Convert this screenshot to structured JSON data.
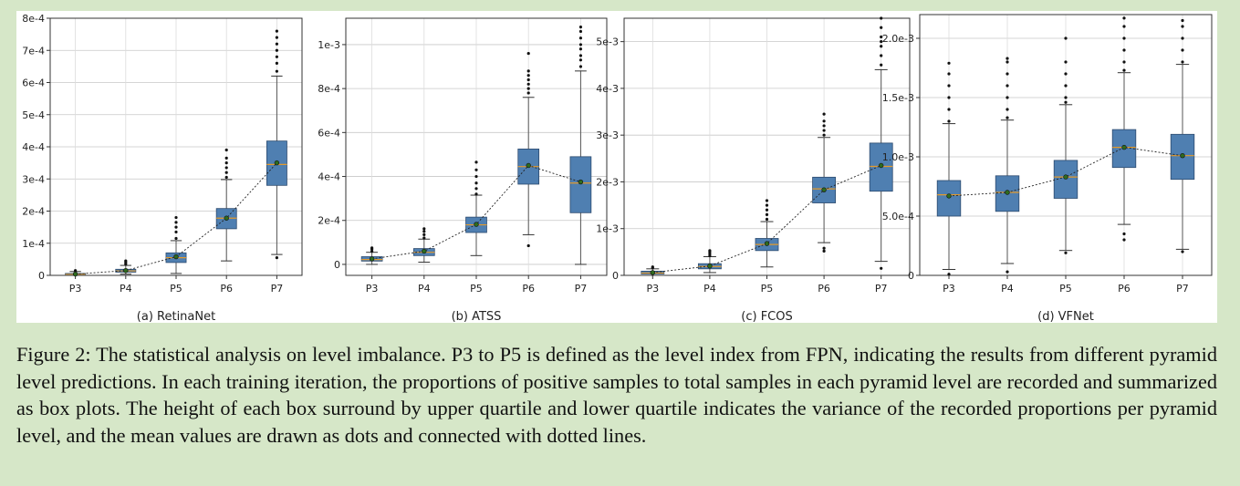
{
  "caption": {
    "text": "Figure 2: The statistical analysis on level imbalance. P3 to P5 is defined as the level index from FPN, indicating the results from different pyramid level predictions. In each training iteration, the proportions of positive samples to total samples in each pyramid level are recorded and summarized as box plots. The height of each box surround by upper quartile and lower quartile indicates the variance of the recorded proportions per pyramid level, and the mean values are drawn as dots and connected with dotted lines."
  },
  "colors": {
    "box_fill": "#4f7fb1",
    "median": "#e39a2c",
    "mean_dot": "#2e6b1f",
    "outer_background": "#d6e7c8"
  },
  "chart_data": [
    {
      "type": "box",
      "subtitle": "(a) RetinaNet",
      "categories": [
        "P3",
        "P4",
        "P5",
        "P6",
        "P7"
      ],
      "ylim": [
        0,
        0.0008
      ],
      "yticks": [
        0,
        0.0001,
        0.0002,
        0.0003,
        0.0004,
        0.0005,
        0.0006,
        0.0007,
        0.0008
      ],
      "ytick_labels": [
        "0",
        "1e-4",
        "2e-4",
        "3e-4",
        "4e-4",
        "5e-4",
        "6e-4",
        "7e-4",
        "8e-4"
      ],
      "grid": true,
      "boxes": [
        {
          "whisker_low": 0.0,
          "q1": 1e-06,
          "median": 3e-06,
          "q3": 6e-06,
          "whisker_high": 1.2e-05,
          "mean": 4e-06,
          "outliers_high": [
            1.5e-05
          ]
        },
        {
          "whisker_low": 4e-06,
          "q1": 1e-05,
          "median": 1.4e-05,
          "q3": 1.9e-05,
          "whisker_high": 3.1e-05,
          "mean": 1.5e-05,
          "outliers_high": [
            3.5e-05,
            4e-05,
            4.5e-05
          ]
        },
        {
          "whisker_low": 6e-06,
          "q1": 4e-05,
          "median": 5.5e-05,
          "q3": 7e-05,
          "whisker_high": 0.000108,
          "mean": 5.8e-05,
          "outliers_high": [
            0.000115,
            0.000135,
            0.00015,
            0.000165,
            0.00018
          ]
        },
        {
          "whisker_low": 4.5e-05,
          "q1": 0.000145,
          "median": 0.000178,
          "q3": 0.000208,
          "whisker_high": 0.000298,
          "mean": 0.000178,
          "outliers_high": [
            0.000305,
            0.00032,
            0.000335,
            0.00035,
            0.000365,
            0.00039
          ]
        },
        {
          "whisker_low": 6.5e-05,
          "q1": 0.00028,
          "median": 0.000345,
          "q3": 0.000418,
          "whisker_high": 0.00062,
          "mean": 0.00035,
          "outliers_low": [
            5.5e-05
          ],
          "outliers_high": [
            0.000635,
            0.00066,
            0.00068,
            0.0007,
            0.00072,
            0.00074,
            0.00076
          ]
        }
      ]
    },
    {
      "type": "box",
      "subtitle": "(b) ATSS",
      "categories": [
        "P3",
        "P4",
        "P5",
        "P6",
        "P7"
      ],
      "ylim": [
        -5e-05,
        0.00112
      ],
      "yticks": [
        0,
        0.0002,
        0.0004,
        0.0006,
        0.0008,
        0.001
      ],
      "ytick_labels": [
        "0",
        "2e-4",
        "4e-4",
        "6e-4",
        "8e-4",
        "1e-3"
      ],
      "grid": true,
      "boxes": [
        {
          "whisker_low": 0.0,
          "q1": 1.5e-05,
          "median": 2.2e-05,
          "q3": 3.5e-05,
          "whisker_high": 5.5e-05,
          "mean": 2.5e-05,
          "outliers_high": [
            6e-05,
            7e-05,
            7.5e-05
          ]
        },
        {
          "whisker_low": 1e-05,
          "q1": 4e-05,
          "median": 5.5e-05,
          "q3": 7.2e-05,
          "whisker_high": 0.000115,
          "mean": 6e-05,
          "outliers_high": [
            0.00012,
            0.000135,
            0.00015,
            0.000162
          ]
        },
        {
          "whisker_low": 4e-05,
          "q1": 0.000145,
          "median": 0.00018,
          "q3": 0.000215,
          "whisker_high": 0.000315,
          "mean": 0.000182,
          "outliers_high": [
            0.00032,
            0.000345,
            0.00037,
            0.0004,
            0.00043,
            0.000465
          ]
        },
        {
          "whisker_low": 0.000135,
          "q1": 0.000365,
          "median": 0.000445,
          "q3": 0.000525,
          "whisker_high": 0.00076,
          "mean": 0.00045,
          "outliers_low": [
            8.5e-05
          ],
          "outliers_high": [
            0.00078,
            0.0008,
            0.00082,
            0.00084,
            0.00086,
            0.00088,
            0.00096
          ]
        },
        {
          "whisker_low": 0.0,
          "q1": 0.000235,
          "median": 0.00037,
          "q3": 0.00049,
          "whisker_high": 0.00088,
          "mean": 0.000375,
          "outliers_high": [
            0.0009,
            0.00093,
            0.00095,
            0.00098,
            0.001,
            0.00103,
            0.00106,
            0.00108
          ]
        }
      ]
    },
    {
      "type": "box",
      "subtitle": "(c) FCOS",
      "categories": [
        "P3",
        "P4",
        "P5",
        "P6",
        "P7"
      ],
      "ylim": [
        0,
        0.0055
      ],
      "yticks": [
        0,
        0.001,
        0.002,
        0.003,
        0.004,
        0.005
      ],
      "ytick_labels": [
        "0",
        "1e-3",
        "2e-3",
        "3e-3",
        "4e-3",
        "5e-3"
      ],
      "grid": true,
      "boxes": [
        {
          "whisker_low": 0.0,
          "q1": 3e-05,
          "median": 5e-05,
          "q3": 9e-05,
          "whisker_high": 0.00014,
          "mean": 6e-05,
          "outliers_high": [
            0.00016,
            0.00018
          ]
        },
        {
          "whisker_low": 6e-05,
          "q1": 0.00014,
          "median": 0.00019,
          "q3": 0.00025,
          "whisker_high": 0.0004,
          "mean": 0.0002,
          "outliers_high": [
            0.00042,
            0.00046,
            0.0005,
            0.00053
          ]
        },
        {
          "whisker_low": 0.00018,
          "q1": 0.00053,
          "median": 0.00066,
          "q3": 0.00079,
          "whisker_high": 0.00115,
          "mean": 0.00068,
          "outliers_high": [
            0.0012,
            0.0013,
            0.0014,
            0.0015,
            0.0016
          ]
        },
        {
          "whisker_low": 0.0007,
          "q1": 0.00155,
          "median": 0.00185,
          "q3": 0.0021,
          "whisker_high": 0.00295,
          "mean": 0.00183,
          "outliers_low": [
            0.00052,
            0.00058
          ],
          "outliers_high": [
            0.003,
            0.0031,
            0.0032,
            0.0033,
            0.00345
          ]
        },
        {
          "whisker_low": 0.0003,
          "q1": 0.0018,
          "median": 0.00233,
          "q3": 0.00283,
          "whisker_high": 0.0044,
          "mean": 0.00235,
          "outliers_low": [
            0.00015
          ],
          "outliers_high": [
            0.0045,
            0.0047,
            0.0049,
            0.005,
            0.0051,
            0.0053,
            0.0055
          ]
        }
      ]
    },
    {
      "type": "box",
      "subtitle": "(d) VFNet",
      "categories": [
        "P3",
        "P4",
        "P5",
        "P6",
        "P7"
      ],
      "ylim": [
        0,
        0.0022
      ],
      "yticks": [
        0,
        0.0005,
        0.001,
        0.0015,
        0.002
      ],
      "ytick_labels": [
        "0",
        "5.0e-4",
        "1.0e-3",
        "1.5e-3",
        "2.0e-3"
      ],
      "grid": true,
      "boxes": [
        {
          "whisker_low": 5e-05,
          "q1": 0.0005,
          "median": 0.00068,
          "q3": 0.0008,
          "whisker_high": 0.00128,
          "mean": 0.00067,
          "outliers_low": [
            1e-05
          ],
          "outliers_high": [
            0.0013,
            0.0014,
            0.0015,
            0.0016,
            0.0017,
            0.00179
          ]
        },
        {
          "whisker_low": 0.0001,
          "q1": 0.00054,
          "median": 0.0007,
          "q3": 0.00084,
          "whisker_high": 0.00131,
          "mean": 0.0007,
          "outliers_low": [
            3e-05
          ],
          "outliers_high": [
            0.00133,
            0.0014,
            0.0015,
            0.0016,
            0.0017,
            0.0018,
            0.00183
          ]
        },
        {
          "whisker_low": 0.00021,
          "q1": 0.00065,
          "median": 0.00083,
          "q3": 0.00097,
          "whisker_high": 0.00144,
          "mean": 0.00083,
          "outliers_low": [
            0.00019
          ],
          "outliers_high": [
            0.00146,
            0.0015,
            0.0016,
            0.0017,
            0.0018,
            0.002
          ]
        },
        {
          "whisker_low": 0.00043,
          "q1": 0.00091,
          "median": 0.00108,
          "q3": 0.00123,
          "whisker_high": 0.00171,
          "mean": 0.00108,
          "outliers_low": [
            0.00035,
            0.0003
          ],
          "outliers_high": [
            0.00173,
            0.0018,
            0.0019,
            0.002,
            0.0021,
            0.00217
          ]
        },
        {
          "whisker_low": 0.00022,
          "q1": 0.00081,
          "median": 0.00101,
          "q3": 0.00119,
          "whisker_high": 0.00178,
          "mean": 0.00101,
          "outliers_low": [
            0.0002
          ],
          "outliers_high": [
            0.0018,
            0.0019,
            0.002,
            0.0021,
            0.00215
          ]
        }
      ]
    }
  ]
}
